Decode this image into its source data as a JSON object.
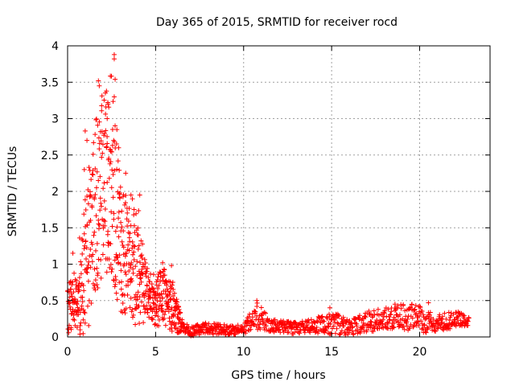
{
  "chart_data": {
    "type": "scatter",
    "title": "Day 365 of 2015, SRMTID for receiver rocd",
    "xlabel": "GPS time / hours",
    "ylabel": "SRMTID / TECUs",
    "xlim": [
      0,
      24
    ],
    "ylim": [
      0,
      4
    ],
    "xticks": [
      0,
      5,
      10,
      15,
      20
    ],
    "xtick_labels": [
      "0",
      "5",
      "10",
      "15",
      "20"
    ],
    "yticks": [
      0,
      0.5,
      1,
      1.5,
      2,
      2.5,
      3,
      3.5,
      4
    ],
    "ytick_labels": [
      "0",
      "0.5",
      "1",
      "1.5",
      "2",
      "2.5",
      "3",
      "3.5",
      "4"
    ],
    "grid": true,
    "marker": "plus",
    "color": "#ff0000",
    "series": [
      {
        "name": "SRMTID",
        "envelope": [
          {
            "x": 0.0,
            "mean": 0.35,
            "spread": 0.35
          },
          {
            "x": 0.5,
            "mean": 0.5,
            "spread": 0.45
          },
          {
            "x": 1.0,
            "mean": 1.0,
            "spread": 1.1
          },
          {
            "x": 1.5,
            "mean": 1.7,
            "spread": 1.2
          },
          {
            "x": 2.0,
            "mean": 2.1,
            "spread": 1.3
          },
          {
            "x": 2.5,
            "mean": 2.3,
            "spread": 1.5
          },
          {
            "x": 3.0,
            "mean": 1.2,
            "spread": 0.9
          },
          {
            "x": 3.5,
            "mean": 1.1,
            "spread": 0.8
          },
          {
            "x": 4.0,
            "mean": 1.0,
            "spread": 0.9
          },
          {
            "x": 4.5,
            "mean": 0.6,
            "spread": 0.35
          },
          {
            "x": 5.0,
            "mean": 0.5,
            "spread": 0.35
          },
          {
            "x": 5.5,
            "mean": 0.55,
            "spread": 0.4
          },
          {
            "x": 6.0,
            "mean": 0.4,
            "spread": 0.35
          },
          {
            "x": 6.5,
            "mean": 0.15,
            "spread": 0.1
          },
          {
            "x": 7.0,
            "mean": 0.08,
            "spread": 0.07
          },
          {
            "x": 8.0,
            "mean": 0.12,
            "spread": 0.08
          },
          {
            "x": 9.0,
            "mean": 0.1,
            "spread": 0.07
          },
          {
            "x": 10.0,
            "mean": 0.1,
            "spread": 0.06
          },
          {
            "x": 10.7,
            "mean": 0.3,
            "spread": 0.2
          },
          {
            "x": 11.5,
            "mean": 0.15,
            "spread": 0.1
          },
          {
            "x": 13.0,
            "mean": 0.12,
            "spread": 0.08
          },
          {
            "x": 14.0,
            "mean": 0.15,
            "spread": 0.1
          },
          {
            "x": 15.0,
            "mean": 0.22,
            "spread": 0.18
          },
          {
            "x": 16.0,
            "mean": 0.12,
            "spread": 0.1
          },
          {
            "x": 17.0,
            "mean": 0.2,
            "spread": 0.15
          },
          {
            "x": 18.0,
            "mean": 0.25,
            "spread": 0.15
          },
          {
            "x": 19.0,
            "mean": 0.28,
            "spread": 0.18
          },
          {
            "x": 20.0,
            "mean": 0.25,
            "spread": 0.2
          },
          {
            "x": 21.0,
            "mean": 0.18,
            "spread": 0.12
          },
          {
            "x": 22.0,
            "mean": 0.25,
            "spread": 0.12
          },
          {
            "x": 22.8,
            "mean": 0.22,
            "spread": 0.06
          }
        ],
        "highlights": [
          {
            "x": 2.65,
            "y": 3.88
          },
          {
            "x": 2.65,
            "y": 3.82
          },
          {
            "x": 2.7,
            "y": 3.54
          },
          {
            "x": 1.75,
            "y": 3.52
          },
          {
            "x": 1.8,
            "y": 3.45
          },
          {
            "x": 2.65,
            "y": 3.3
          },
          {
            "x": 2.3,
            "y": 3.2
          },
          {
            "x": 2.25,
            "y": 3.0
          },
          {
            "x": 2.8,
            "y": 2.85
          },
          {
            "x": 1.0,
            "y": 2.83
          },
          {
            "x": 1.1,
            "y": 2.7
          },
          {
            "x": 2.9,
            "y": 2.6
          },
          {
            "x": 0.95,
            "y": 2.3
          },
          {
            "x": 3.3,
            "y": 2.25
          },
          {
            "x": 3.6,
            "y": 1.95
          },
          {
            "x": 4.1,
            "y": 1.95
          },
          {
            "x": 5.4,
            "y": 1.02
          },
          {
            "x": 5.9,
            "y": 0.98
          },
          {
            "x": 0.3,
            "y": 1.15
          },
          {
            "x": 10.75,
            "y": 0.5
          },
          {
            "x": 14.9,
            "y": 0.4
          },
          {
            "x": 18.6,
            "y": 0.45
          },
          {
            "x": 20.5,
            "y": 0.47
          }
        ]
      }
    ]
  }
}
